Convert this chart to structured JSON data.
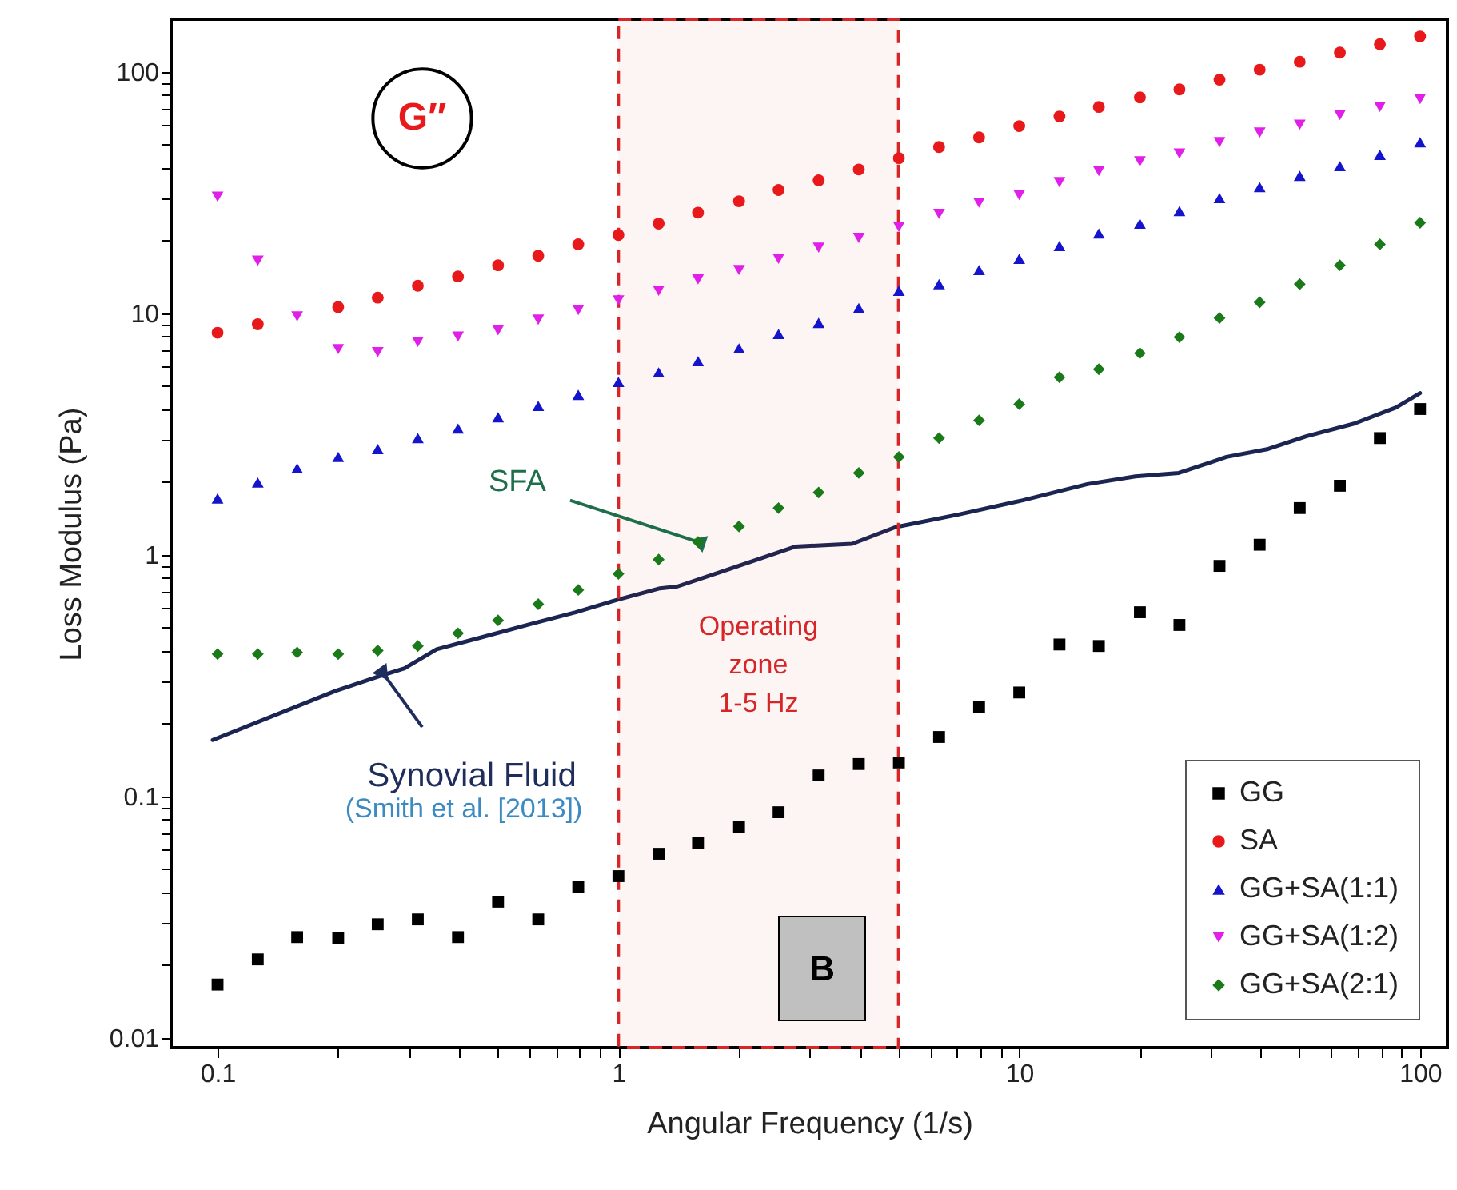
{
  "chart_data": {
    "type": "scatter",
    "xlabel": "Angular Frequency (1/s)",
    "ylabel": "Loss Modulus (Pa)",
    "log": "xy",
    "legend": "bottom right",
    "xlim": [
      0.0766,
      117
    ],
    "ylim": [
      0.0091,
      165
    ],
    "xticks": [
      0.1,
      {
        "value": 0.2,
        "label": null
      },
      {
        "value": 0.3,
        "label": null
      },
      {
        "value": 0.4,
        "label": null
      },
      {
        "value": 0.5,
        "label": null
      },
      {
        "value": 0.6,
        "label": null
      },
      {
        "value": 0.7,
        "label": null
      },
      {
        "value": 0.8,
        "label": null
      },
      {
        "value": 0.9,
        "label": null
      },
      1,
      {
        "value": 2,
        "label": null
      },
      {
        "value": 3,
        "label": null
      },
      {
        "value": 4,
        "label": null
      },
      {
        "value": 5,
        "label": null
      },
      {
        "value": 6,
        "label": null
      },
      {
        "value": 7,
        "label": null
      },
      {
        "value": 8,
        "label": null
      },
      {
        "value": 9,
        "label": null
      },
      10,
      {
        "value": 20,
        "label": null
      },
      {
        "value": 30,
        "label": null
      },
      {
        "value": 40,
        "label": null
      },
      {
        "value": 50,
        "label": null
      },
      {
        "value": 60,
        "label": null
      },
      {
        "value": 70,
        "label": null
      },
      {
        "value": 80,
        "label": null
      },
      {
        "value": 90,
        "label": null
      },
      100
    ],
    "yticks": [
      0.01,
      {
        "value": 0.02,
        "label": null
      },
      {
        "value": 0.03,
        "label": null
      },
      {
        "value": 0.04,
        "label": null
      },
      {
        "value": 0.05,
        "label": null
      },
      {
        "value": 0.06,
        "label": null
      },
      {
        "value": 0.07,
        "label": null
      },
      {
        "value": 0.08,
        "label": null
      },
      {
        "value": 0.09,
        "label": null
      },
      0.1,
      {
        "value": 0.2,
        "label": null
      },
      {
        "value": 0.3,
        "label": null
      },
      {
        "value": 0.4,
        "label": null
      },
      {
        "value": 0.5,
        "label": null
      },
      {
        "value": 0.6,
        "label": null
      },
      {
        "value": 0.7,
        "label": null
      },
      {
        "value": 0.8,
        "label": null
      },
      {
        "value": 0.9,
        "label": null
      },
      1,
      {
        "value": 2,
        "label": null
      },
      {
        "value": 3,
        "label": null
      },
      {
        "value": 4,
        "label": null
      },
      {
        "value": 5,
        "label": null
      },
      {
        "value": 6,
        "label": null
      },
      {
        "value": 7,
        "label": null
      },
      {
        "value": 8,
        "label": null
      },
      {
        "value": 9,
        "label": null
      },
      10,
      {
        "value": 20,
        "label": null
      },
      {
        "value": 30,
        "label": null
      },
      {
        "value": 40,
        "label": null
      },
      {
        "value": 50,
        "label": null
      },
      {
        "value": 60,
        "label": null
      },
      {
        "value": 70,
        "label": null
      },
      {
        "value": 80,
        "label": null
      },
      {
        "value": 90,
        "label": null
      },
      100
    ],
    "x": [
      0.1,
      0.126,
      0.158,
      0.2,
      0.251,
      0.316,
      0.398,
      0.501,
      0.631,
      0.794,
      1,
      1.26,
      1.58,
      2,
      2.51,
      3.16,
      3.98,
      5.01,
      6.31,
      7.94,
      10,
      12.6,
      15.8,
      20,
      25.1,
      31.6,
      39.8,
      50.1,
      63.1,
      79.4,
      100
    ],
    "series": [
      {
        "name": "GG",
        "color": "#000000",
        "marker": "square",
        "values": [
          0.0166,
          0.0211,
          0.0261,
          0.0258,
          0.0295,
          0.0309,
          0.0261,
          0.0366,
          0.0309,
          0.042,
          0.0467,
          0.0578,
          0.0643,
          0.0748,
          0.0859,
          0.122,
          0.136,
          0.138,
          0.176,
          0.235,
          0.269,
          0.425,
          0.419,
          0.578,
          0.512,
          0.899,
          1.1,
          1.56,
          1.93,
          3.04,
          4.01
        ]
      },
      {
        "name": "SA",
        "color": "#e8191b",
        "marker": "circle",
        "values": [
          8.3,
          9.0,
          null,
          10.6,
          11.6,
          13.0,
          14.2,
          15.8,
          17.3,
          19.3,
          21.1,
          23.5,
          26.1,
          29.1,
          32.4,
          35.5,
          39.4,
          43.9,
          48.8,
          53.5,
          59.6,
          65.3,
          71.5,
          78.3,
          84.5,
          92.7,
          102,
          110,
          120,
          130,
          140
        ]
      },
      {
        "name": "GG+SA(1:1)",
        "color": "#1414cc",
        "marker": "triangle",
        "values": [
          1.71,
          1.99,
          2.28,
          2.54,
          2.74,
          3.04,
          3.33,
          3.71,
          4.13,
          4.59,
          5.19,
          5.69,
          6.33,
          7.15,
          8.2,
          9.12,
          10.5,
          12.4,
          13.2,
          15.1,
          16.8,
          19.0,
          21.4,
          23.5,
          26.5,
          30.0,
          33.3,
          37.1,
          40.7,
          45.3,
          51.1
        ]
      },
      {
        "name": "GG+SA(1:2)",
        "color": "#e020e8",
        "marker": "triangle-down",
        "values": [
          30.4,
          16.5,
          9.7,
          7.1,
          6.9,
          7.6,
          8.0,
          8.5,
          9.4,
          10.3,
          11.3,
          12.4,
          13.8,
          15.1,
          16.8,
          18.7,
          20.5,
          22.8,
          25.8,
          28.7,
          30.9,
          34.9,
          38.8,
          42.6,
          45.9,
          51.1,
          56.0,
          60.4,
          66.2,
          71.5,
          77.1
        ]
      },
      {
        "name": "GG+SA(2:1)",
        "color": "#1a7a1a",
        "marker": "diamond",
        "values": [
          0.388,
          0.388,
          0.394,
          0.388,
          0.401,
          0.419,
          0.473,
          0.535,
          0.624,
          0.715,
          0.833,
          0.955,
          1.13,
          1.31,
          1.56,
          1.81,
          2.18,
          2.54,
          3.04,
          3.6,
          4.2,
          5.43,
          5.86,
          6.83,
          7.96,
          9.55,
          11.1,
          13.2,
          15.8,
          19.3,
          23.7
        ]
      },
      {
        "type": "line",
        "color": "#1a2552",
        "marker": "none",
        "line_style": "solid",
        "x": [
          0.0973,
          0.197,
          0.253,
          0.293,
          0.352,
          0.451,
          0.611,
          0.782,
          1.0,
          1.27,
          1.4,
          1.79,
          2.76,
          3.83,
          4.91,
          7.1,
          10.2,
          14.8,
          19.5,
          25.0,
          32.9,
          41.8,
          52.0,
          68.5,
          87.1,
          100
        ],
        "values": [
          0.171,
          0.273,
          0.314,
          0.339,
          0.406,
          0.453,
          0.519,
          0.578,
          0.653,
          0.726,
          0.738,
          0.846,
          1.08,
          1.11,
          1.3,
          1.47,
          1.68,
          1.96,
          2.11,
          2.18,
          2.54,
          2.74,
          3.09,
          3.49,
          4.07,
          4.67
        ]
      }
    ],
    "bands": [
      {
        "axis": "x",
        "from": 1,
        "to": 5,
        "label": "Operating\nzone\n1-5 Hz",
        "color": "#d62728"
      }
    ],
    "annotations": [
      "G″",
      {
        "text": "SFA",
        "x": 1.58,
        "y": 1.13
      },
      {
        "text": "Synovial Fluid",
        "x": 0.26,
        "y": 0.32
      },
      "(Smith et al. [2013])",
      "B"
    ]
  }
}
